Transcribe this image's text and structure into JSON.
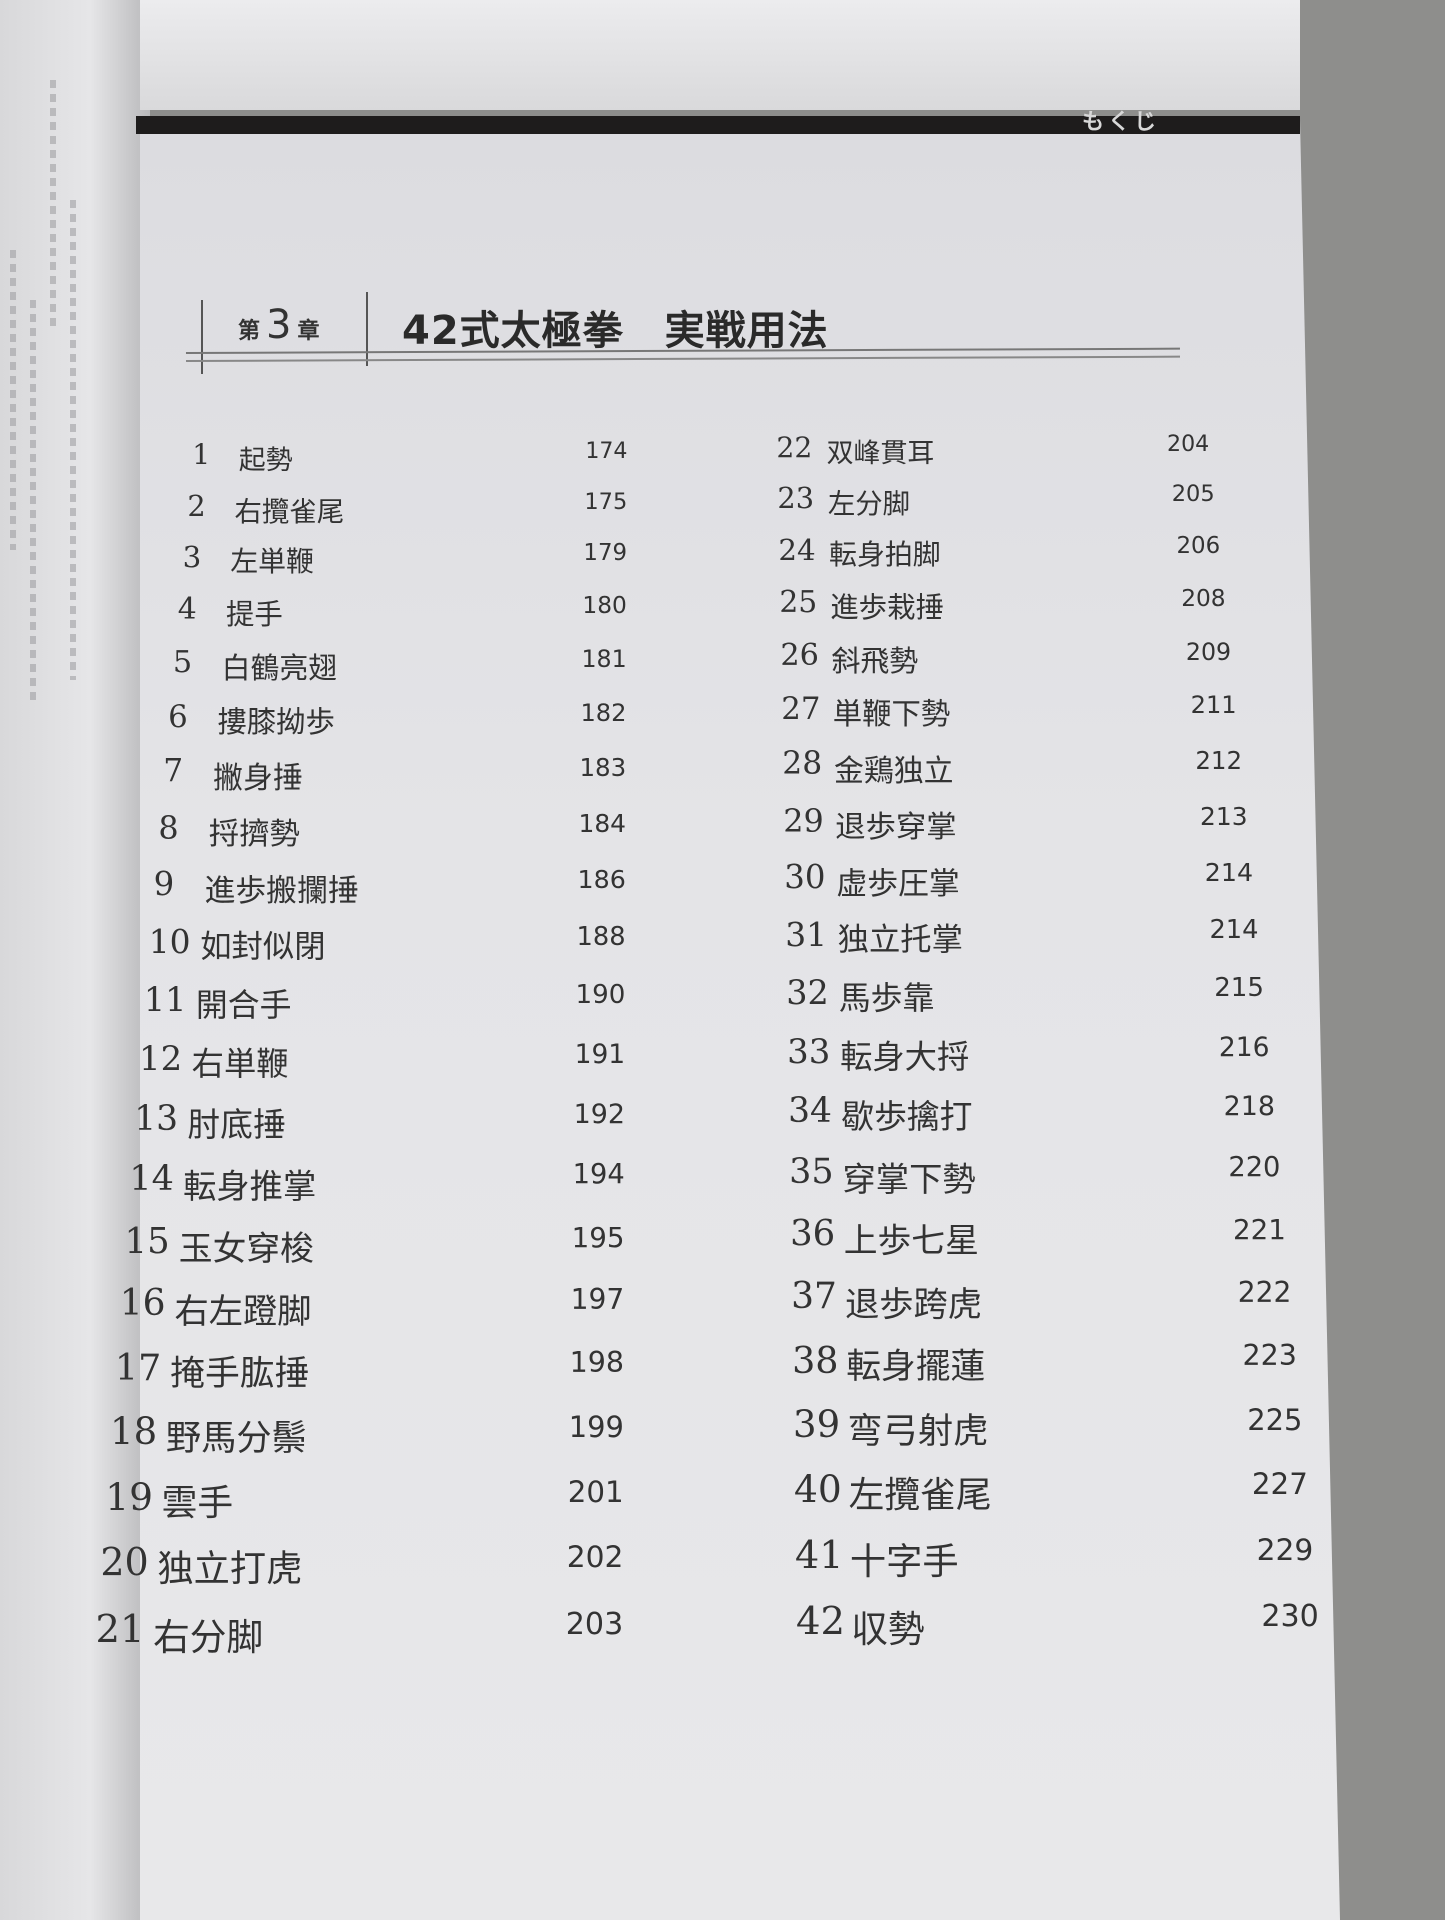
{
  "header": {
    "section_label": "もくじ"
  },
  "chapter": {
    "prefix": "第",
    "number": "3",
    "suffix": "章",
    "title": "42式太極拳　実戦用法"
  },
  "entries": [
    {
      "no": "1",
      "name": "起勢",
      "page": "174"
    },
    {
      "no": "2",
      "name": "右攬雀尾",
      "page": "175"
    },
    {
      "no": "3",
      "name": "左単鞭",
      "page": "179"
    },
    {
      "no": "4",
      "name": "提手",
      "page": "180"
    },
    {
      "no": "5",
      "name": "白鶴亮翅",
      "page": "181"
    },
    {
      "no": "6",
      "name": "摟膝拗歩",
      "page": "182"
    },
    {
      "no": "7",
      "name": "撇身捶",
      "page": "183"
    },
    {
      "no": "8",
      "name": "捋擠勢",
      "page": "184"
    },
    {
      "no": "9",
      "name": "進歩搬攔捶",
      "page": "186"
    },
    {
      "no": "10",
      "name": "如封似閉",
      "page": "188"
    },
    {
      "no": "11",
      "name": "開合手",
      "page": "190"
    },
    {
      "no": "12",
      "name": "右単鞭",
      "page": "191"
    },
    {
      "no": "13",
      "name": "肘底捶",
      "page": "192"
    },
    {
      "no": "14",
      "name": "転身推掌",
      "page": "194"
    },
    {
      "no": "15",
      "name": "玉女穿梭",
      "page": "195"
    },
    {
      "no": "16",
      "name": "右左蹬脚",
      "page": "197"
    },
    {
      "no": "17",
      "name": "掩手肱捶",
      "page": "198"
    },
    {
      "no": "18",
      "name": "野馬分鬃",
      "page": "199"
    },
    {
      "no": "19",
      "name": "雲手",
      "page": "201"
    },
    {
      "no": "20",
      "name": "独立打虎",
      "page": "202"
    },
    {
      "no": "21",
      "name": "右分脚",
      "page": "203"
    },
    {
      "no": "22",
      "name": "双峰貫耳",
      "page": "204"
    },
    {
      "no": "23",
      "name": "左分脚",
      "page": "205"
    },
    {
      "no": "24",
      "name": "転身拍脚",
      "page": "206"
    },
    {
      "no": "25",
      "name": "進歩栽捶",
      "page": "208"
    },
    {
      "no": "26",
      "name": "斜飛勢",
      "page": "209"
    },
    {
      "no": "27",
      "name": "単鞭下勢",
      "page": "211"
    },
    {
      "no": "28",
      "name": "金鶏独立",
      "page": "212"
    },
    {
      "no": "29",
      "name": "退歩穿掌",
      "page": "213"
    },
    {
      "no": "30",
      "name": "虚歩圧掌",
      "page": "214"
    },
    {
      "no": "31",
      "name": "独立托掌",
      "page": "214"
    },
    {
      "no": "32",
      "name": "馬歩靠",
      "page": "215"
    },
    {
      "no": "33",
      "name": "転身大捋",
      "page": "216"
    },
    {
      "no": "34",
      "name": "歇歩擒打",
      "page": "218"
    },
    {
      "no": "35",
      "name": "穿掌下勢",
      "page": "220"
    },
    {
      "no": "36",
      "name": "上歩七星",
      "page": "221"
    },
    {
      "no": "37",
      "name": "退歩跨虎",
      "page": "222"
    },
    {
      "no": "38",
      "name": "転身擺蓮",
      "page": "223"
    },
    {
      "no": "39",
      "name": "弯弓射虎",
      "page": "225"
    },
    {
      "no": "40",
      "name": "左攬雀尾",
      "page": "227"
    },
    {
      "no": "41",
      "name": "十字手",
      "page": "229"
    },
    {
      "no": "42",
      "name": "収勢",
      "page": "230"
    }
  ]
}
